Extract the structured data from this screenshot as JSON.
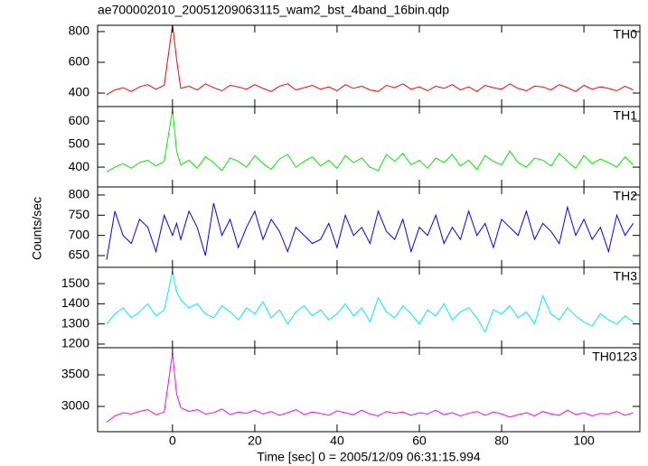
{
  "title": "ae700002010_20051209063115_wam2_bst_4band_16bin.qdp",
  "xlabel": "Time [sec] 0 = 2005/12/09 06:31:15.994",
  "ylabel": "Counts/sec",
  "chart_data": [
    {
      "type": "line",
      "label": "TH0",
      "color": "#ff0000",
      "x": [
        -16,
        -14,
        -12,
        -10,
        -8,
        -6,
        -4,
        -2,
        0,
        1,
        2,
        4,
        6,
        8,
        10,
        12,
        14,
        16,
        18,
        20,
        22,
        24,
        26,
        28,
        30,
        32,
        34,
        36,
        38,
        40,
        42,
        44,
        46,
        48,
        50,
        52,
        54,
        56,
        58,
        60,
        62,
        64,
        66,
        68,
        70,
        72,
        74,
        76,
        78,
        80,
        82,
        84,
        86,
        88,
        90,
        92,
        94,
        96,
        98,
        100,
        102,
        104,
        106,
        108,
        110,
        112
      ],
      "values": [
        390,
        420,
        435,
        410,
        440,
        455,
        425,
        450,
        845,
        620,
        430,
        445,
        420,
        460,
        435,
        415,
        450,
        440,
        425,
        455,
        430,
        410,
        445,
        460,
        420,
        435,
        450,
        425,
        440,
        415,
        455,
        430,
        445,
        420,
        410,
        450,
        435,
        460,
        425,
        440,
        415,
        445,
        430,
        455,
        420,
        440,
        410,
        450,
        435,
        425,
        460,
        430,
        415,
        445,
        440,
        420,
        455,
        435,
        410,
        450,
        425,
        440,
        430,
        415,
        445,
        420
      ],
      "xlim": [
        -18.2,
        113.6
      ],
      "xticks": [
        0,
        20,
        40,
        60,
        80,
        100
      ],
      "ylim": [
        312,
        841
      ],
      "yticks": [
        400,
        600,
        800
      ]
    },
    {
      "type": "line",
      "label": "TH1",
      "color": "#00ee00",
      "x": [
        -16,
        -14,
        -12,
        -10,
        -8,
        -6,
        -4,
        -2,
        0,
        1,
        2,
        4,
        6,
        8,
        10,
        12,
        14,
        16,
        18,
        20,
        22,
        24,
        26,
        28,
        30,
        32,
        34,
        36,
        38,
        40,
        42,
        44,
        46,
        48,
        50,
        52,
        54,
        56,
        58,
        60,
        62,
        64,
        66,
        68,
        70,
        72,
        74,
        76,
        78,
        80,
        82,
        84,
        86,
        88,
        90,
        92,
        94,
        96,
        98,
        100,
        102,
        104,
        106,
        108,
        110,
        112
      ],
      "values": [
        380,
        400,
        415,
        395,
        420,
        430,
        405,
        425,
        650,
        470,
        410,
        430,
        395,
        445,
        420,
        385,
        440,
        425,
        400,
        450,
        415,
        390,
        435,
        455,
        400,
        425,
        445,
        405,
        430,
        395,
        450,
        420,
        440,
        400,
        385,
        455,
        425,
        460,
        410,
        430,
        395,
        440,
        420,
        455,
        405,
        430,
        390,
        450,
        425,
        410,
        470,
        420,
        400,
        440,
        430,
        405,
        460,
        425,
        395,
        450,
        415,
        435,
        420,
        400,
        445,
        410
      ],
      "xlim": [
        -18.2,
        113.6
      ],
      "xticks": [
        0,
        20,
        40,
        60,
        80,
        100
      ],
      "ylim": [
        314,
        663
      ],
      "yticks": [
        400,
        500,
        600
      ]
    },
    {
      "type": "line",
      "label": "TH2",
      "color": "#0000ff",
      "x": [
        -16,
        -14,
        -12,
        -10,
        -8,
        -6,
        -4,
        -2,
        0,
        1,
        2,
        4,
        6,
        8,
        10,
        12,
        14,
        16,
        18,
        20,
        22,
        24,
        26,
        28,
        30,
        32,
        34,
        36,
        38,
        40,
        42,
        44,
        46,
        48,
        50,
        52,
        54,
        56,
        58,
        60,
        62,
        64,
        66,
        68,
        70,
        72,
        74,
        76,
        78,
        80,
        82,
        84,
        86,
        88,
        90,
        92,
        94,
        96,
        98,
        100,
        102,
        104,
        106,
        108,
        110,
        112
      ],
      "values": [
        640,
        760,
        700,
        680,
        740,
        720,
        660,
        750,
        700,
        730,
        690,
        760,
        720,
        650,
        780,
        700,
        740,
        670,
        720,
        760,
        690,
        740,
        710,
        660,
        720,
        700,
        680,
        690,
        730,
        670,
        750,
        700,
        720,
        680,
        760,
        710,
        690,
        740,
        660,
        720,
        700,
        750,
        680,
        720,
        690,
        760,
        700,
        730,
        670,
        740,
        720,
        700,
        760,
        690,
        730,
        710,
        680,
        770,
        700,
        740,
        690,
        720,
        660,
        750,
        700,
        730
      ],
      "xlim": [
        -18.2,
        113.6
      ],
      "xticks": [
        0,
        20,
        40,
        60,
        80,
        100
      ],
      "ylim": [
        621,
        820
      ],
      "yticks": [
        650,
        700,
        750,
        800
      ]
    },
    {
      "type": "line",
      "label": "TH3",
      "color": "#00eeee",
      "x": [
        -16,
        -14,
        -12,
        -10,
        -8,
        -6,
        -4,
        -2,
        0,
        1,
        2,
        4,
        6,
        8,
        10,
        12,
        14,
        16,
        18,
        20,
        22,
        24,
        26,
        28,
        30,
        32,
        34,
        36,
        38,
        40,
        42,
        44,
        46,
        48,
        50,
        52,
        54,
        56,
        58,
        60,
        62,
        64,
        66,
        68,
        70,
        72,
        74,
        76,
        78,
        80,
        82,
        84,
        86,
        88,
        90,
        92,
        94,
        96,
        98,
        100,
        102,
        104,
        106,
        108,
        110,
        112
      ],
      "values": [
        1300,
        1350,
        1380,
        1330,
        1360,
        1400,
        1340,
        1370,
        1560,
        1460,
        1420,
        1380,
        1400,
        1350,
        1330,
        1390,
        1360,
        1320,
        1380,
        1350,
        1410,
        1330,
        1370,
        1300,
        1360,
        1390,
        1340,
        1370,
        1320,
        1350,
        1400,
        1340,
        1380,
        1310,
        1430,
        1360,
        1330,
        1390,
        1350,
        1300,
        1370,
        1340,
        1400,
        1320,
        1360,
        1380,
        1330,
        1260,
        1370,
        1350,
        1390,
        1330,
        1360,
        1300,
        1440,
        1350,
        1320,
        1380,
        1340,
        1310,
        1290,
        1350,
        1320,
        1300,
        1340,
        1310
      ],
      "xlim": [
        -18.2,
        113.6
      ],
      "xticks": [
        0,
        20,
        40,
        60,
        80,
        100
      ],
      "ylim": [
        1182,
        1581
      ],
      "yticks": [
        1200,
        1300,
        1400,
        1500
      ]
    },
    {
      "type": "line",
      "label": "TH0123",
      "color": "#ff00ff",
      "x": [
        -16,
        -14,
        -12,
        -10,
        -8,
        -6,
        -4,
        -2,
        0,
        1,
        2,
        4,
        6,
        8,
        10,
        12,
        14,
        16,
        18,
        20,
        22,
        24,
        26,
        28,
        30,
        32,
        34,
        36,
        38,
        40,
        42,
        44,
        46,
        48,
        50,
        52,
        54,
        56,
        58,
        60,
        62,
        64,
        66,
        68,
        70,
        72,
        74,
        76,
        78,
        80,
        82,
        84,
        86,
        88,
        90,
        92,
        94,
        96,
        98,
        100,
        102,
        104,
        106,
        108,
        110,
        112
      ],
      "values": [
        2750,
        2850,
        2900,
        2880,
        2920,
        2950,
        2870,
        2910,
        3850,
        3200,
        2980,
        2920,
        2950,
        2880,
        2900,
        2960,
        2870,
        2910,
        2890,
        2940,
        2880,
        2920,
        2860,
        2900,
        2950,
        2870,
        2910,
        2890,
        2860,
        2930,
        2900,
        2870,
        2940,
        2880,
        2850,
        2920,
        2890,
        2910,
        2860,
        2900,
        2880,
        2940,
        2870,
        2900,
        2850,
        2890,
        2920,
        2860,
        2910,
        2880,
        2830,
        2870,
        2900,
        2850,
        2920,
        2880,
        2860,
        2940,
        2870,
        2900,
        2850,
        2890,
        2880,
        2920,
        2860,
        2900
      ],
      "xlim": [
        -18.2,
        113.6
      ],
      "xticks": [
        0,
        20,
        40,
        60,
        80,
        100
      ],
      "ylim": [
        2600,
        3929
      ],
      "yticks": [
        3000,
        3500
      ]
    }
  ]
}
